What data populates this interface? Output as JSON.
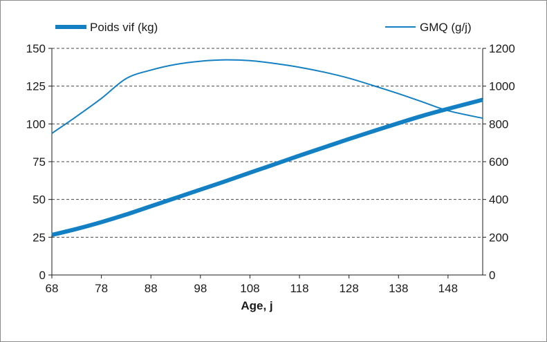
{
  "chart_data": {
    "type": "line",
    "title": "",
    "xlabel": "Age, j",
    "ylabel": "",
    "y2label": "",
    "xlim": [
      68,
      155
    ],
    "ylim": [
      0,
      150
    ],
    "y2lim": [
      0,
      1200
    ],
    "x_ticks": [
      68,
      78,
      88,
      98,
      108,
      118,
      128,
      138,
      148
    ],
    "y_ticks": [
      0,
      25,
      50,
      75,
      100,
      125,
      150
    ],
    "y2_ticks": [
      0,
      200,
      400,
      600,
      800,
      1000,
      1200
    ],
    "grid": "horizontal-dashed",
    "legend_position": "top",
    "colors": {
      "series": "#1380c4",
      "grid": "#444444",
      "axis": "#1a1a1a"
    },
    "series": [
      {
        "name": "Poids vif (kg)",
        "axis": "left",
        "style": "thick",
        "x": [
          68,
          73,
          78,
          83,
          88,
          93,
          98,
          103,
          108,
          113,
          118,
          123,
          128,
          133,
          138,
          143,
          148,
          155
        ],
        "values": [
          26.5,
          30.5,
          35,
          40,
          45.5,
          51,
          56.5,
          62,
          67.7,
          73.3,
          79,
          84.5,
          90,
          95.3,
          100.5,
          105.5,
          110,
          116
        ]
      },
      {
        "name": "GMQ (g/j)",
        "axis": "right",
        "style": "thin",
        "x": [
          68,
          73,
          78,
          83,
          88,
          93,
          98,
          103,
          108,
          113,
          118,
          123,
          128,
          133,
          138,
          143,
          148,
          155
        ],
        "values": [
          750,
          840,
          935,
          1040,
          1085,
          1115,
          1132,
          1139,
          1135,
          1120,
          1100,
          1074,
          1042,
          1002,
          960,
          915,
          870,
          830
        ]
      }
    ]
  }
}
